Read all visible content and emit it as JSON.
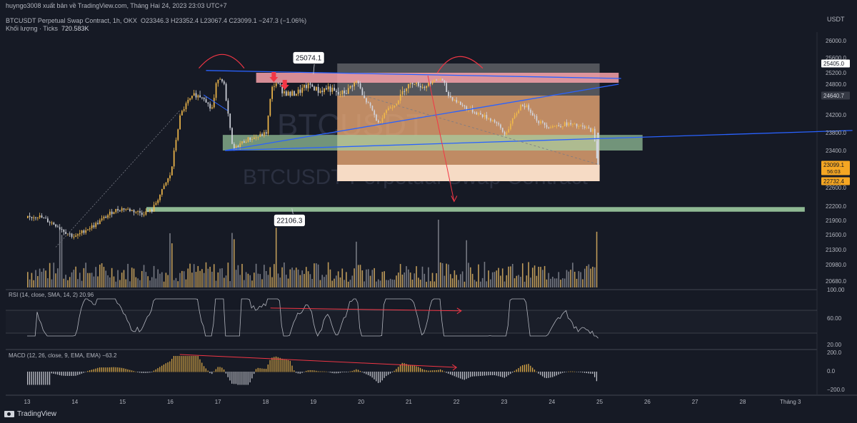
{
  "publish_line": "huyngo3008 xuất bản về TradingView.com, Tháng Hai 24, 2023 23:03 UTC+7",
  "symbol_line": {
    "symbol": "BTCUSDT Perpetual Swap Contract, 1h, OKX",
    "ohlc": "O23346.3 H23352.4 L23067.4 C23099.1 −247.3 (−1.06%)"
  },
  "volume_line": {
    "label": "Khối lượng · Ticks",
    "value": "720.583K"
  },
  "watermark": {
    "main": "BTCUSDT",
    "sub": "BTCUSDT Perpetual Swap Contract"
  },
  "currency": "USDT",
  "brand": "TradingView",
  "colors": {
    "bg": "#161a25",
    "up": "#f0b84a",
    "down": "#d1d4dc",
    "grid": "#2a2e39",
    "trend": "#2962ff",
    "red_zone": "#f7a1a9",
    "green_zone": "#a5d6a7",
    "orange_zone": "#f8b27a",
    "gray_zone": "#9e9e9e",
    "arrow": "#f23645"
  },
  "chart_data": [
    {
      "type": "candlestick",
      "x_labels": [
        "13",
        "14",
        "15",
        "16",
        "17",
        "18",
        "19",
        "20",
        "21",
        "22",
        "23",
        "24",
        "25",
        "26",
        "27",
        "28",
        "Tháng 3"
      ],
      "y_ticks": [
        26000,
        25600,
        25200,
        24800,
        24200,
        23800,
        23400,
        22600,
        22200,
        21900,
        21600,
        21300,
        20980,
        20680
      ],
      "y_markers": [
        {
          "value": "25405.0",
          "style": "white"
        },
        {
          "value": "24640.7",
          "style": "dark"
        },
        {
          "value": "23099.1",
          "sub": "56:03",
          "style": "orange"
        },
        {
          "value": "22732.4",
          "style": "orange"
        }
      ],
      "close_path": [
        [
          13.0,
          21950
        ],
        [
          13.2,
          22000
        ],
        [
          13.4,
          21900
        ],
        [
          13.6,
          21800
        ],
        [
          13.8,
          21650
        ],
        [
          14.0,
          21550
        ],
        [
          14.2,
          21700
        ],
        [
          14.4,
          21800
        ],
        [
          14.6,
          21950
        ],
        [
          14.8,
          22100
        ],
        [
          15.0,
          22150
        ],
        [
          15.2,
          22100
        ],
        [
          15.4,
          22050
        ],
        [
          15.6,
          22100
        ],
        [
          15.8,
          22500
        ],
        [
          16.0,
          22900
        ],
        [
          16.1,
          23600
        ],
        [
          16.2,
          24200
        ],
        [
          16.35,
          24500
        ],
        [
          16.5,
          24650
        ],
        [
          16.7,
          24600
        ],
        [
          16.85,
          24300
        ],
        [
          17.0,
          25050
        ],
        [
          17.1,
          24900
        ],
        [
          17.2,
          24200
        ],
        [
          17.3,
          23400
        ],
        [
          17.45,
          23550
        ],
        [
          17.6,
          23650
        ],
        [
          17.8,
          23700
        ],
        [
          18.0,
          23800
        ],
        [
          18.1,
          24700
        ],
        [
          18.2,
          24850
        ],
        [
          18.35,
          24700
        ],
        [
          18.5,
          24650
        ],
        [
          18.7,
          24700
        ],
        [
          18.9,
          24800
        ],
        [
          19.1,
          24700
        ],
        [
          19.3,
          24750
        ],
        [
          19.5,
          24650
        ],
        [
          19.7,
          24700
        ],
        [
          19.9,
          24900
        ],
        [
          20.0,
          24650
        ],
        [
          20.2,
          24350
        ],
        [
          20.35,
          24000
        ],
        [
          20.5,
          24300
        ],
        [
          20.7,
          24450
        ],
        [
          20.9,
          24750
        ],
        [
          21.1,
          24850
        ],
        [
          21.3,
          24750
        ],
        [
          21.5,
          24900
        ],
        [
          21.65,
          25000
        ],
        [
          21.8,
          24650
        ],
        [
          22.0,
          24500
        ],
        [
          22.2,
          24350
        ],
        [
          22.4,
          24250
        ],
        [
          22.6,
          24150
        ],
        [
          22.8,
          24050
        ],
        [
          23.0,
          23750
        ],
        [
          23.2,
          24150
        ],
        [
          23.35,
          24450
        ],
        [
          23.5,
          24350
        ],
        [
          23.7,
          24050
        ],
        [
          23.9,
          23950
        ],
        [
          24.1,
          23950
        ],
        [
          24.3,
          24000
        ],
        [
          24.5,
          23950
        ],
        [
          24.7,
          23900
        ],
        [
          24.85,
          23850
        ],
        [
          24.95,
          23099
        ]
      ],
      "volume_spikes": [
        [
          13.7,
          "tall"
        ],
        [
          16.0,
          "tall"
        ],
        [
          17.3,
          "tall"
        ],
        [
          18.2,
          "tall"
        ],
        [
          19.9,
          "tall"
        ],
        [
          21.6,
          "tallest"
        ],
        [
          22.2,
          "tall"
        ],
        [
          24.95,
          "tall"
        ]
      ],
      "annotations": [
        {
          "kind": "label",
          "text": "25074.1",
          "x": 18.9,
          "y": 25600
        },
        {
          "kind": "label",
          "text": "22106.3",
          "x": 18.5,
          "y": 21900
        },
        {
          "kind": "zone",
          "name": "red",
          "x0": 17.8,
          "x1": 25.4,
          "y0": 24850,
          "y1": 25200
        },
        {
          "kind": "zone",
          "name": "gray",
          "x0": 19.5,
          "x1": 25.0,
          "y0": 24640.7,
          "y1": 25405
        },
        {
          "kind": "zone",
          "name": "orange",
          "x0": 19.5,
          "x1": 25.0,
          "y0": 22732.4,
          "y1": 24640.7
        },
        {
          "kind": "zone",
          "name": "green",
          "x0": 17.1,
          "x1": 25.9,
          "y0": 23400,
          "y1": 23750
        },
        {
          "kind": "zone",
          "name": "green_line",
          "x0": 15.5,
          "x1": 29.3,
          "y0": 22080,
          "y1": 22180
        }
      ],
      "indicators": [
        {
          "name": "RSI",
          "label": "RSI (14, close, SMA, 14, 2)",
          "value": "20.96",
          "ticks": [
            "100.00",
            "60.00",
            "20.00"
          ]
        },
        {
          "name": "MACD",
          "label": "MACD (12, 26, close, 9, EMA, EMA)",
          "value": "−63.2",
          "ticks": [
            "200.0",
            "0.0",
            "−200.0"
          ]
        }
      ]
    }
  ]
}
